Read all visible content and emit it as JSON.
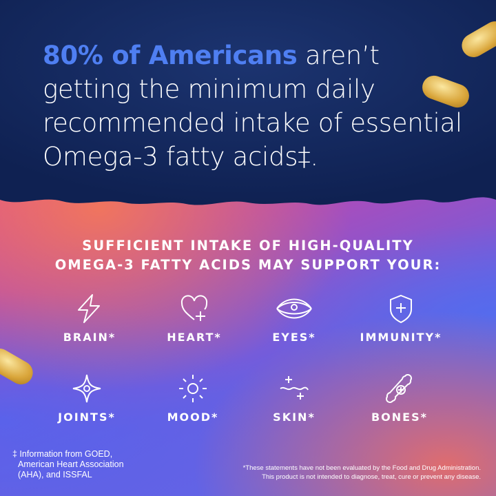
{
  "headline": {
    "highlight": "80% of Americans",
    "rest": " aren’t getting the minimum daily recommended intake of essential Omega-3 fatty acids‡."
  },
  "subheading": {
    "line1": "SUFFICIENT INTAKE OF HIGH-QUALITY",
    "line2": "OMEGA-3 FATTY ACIDS MAY SUPPORT YOUR:"
  },
  "benefits": [
    {
      "label": "BRAIN*",
      "icon": "lightning-icon"
    },
    {
      "label": "HEART*",
      "icon": "heart-plus-icon"
    },
    {
      "label": "EYES*",
      "icon": "eye-icon"
    },
    {
      "label": "IMMUNITY*",
      "icon": "shield-plus-icon"
    },
    {
      "label": "JOINTS*",
      "icon": "sparkle-joint-icon"
    },
    {
      "label": "MOOD*",
      "icon": "sun-icon"
    },
    {
      "label": "SKIN*",
      "icon": "wave-sparkle-icon"
    },
    {
      "label": "BONES*",
      "icon": "bone-plus-icon"
    }
  ],
  "footnote_left": {
    "line1": "‡ Information from GOED,",
    "line2": "American Heart Association",
    "line3": "(AHA), and ISSFAL"
  },
  "footnote_right": {
    "line1": "*These statements have not been evaluated by the Food and Drug Administration.",
    "line2": "This product is not intended to diagnose, treat, cure or prevent any disease."
  },
  "colors": {
    "navy": "#14285c",
    "highlight": "#4f7ff2",
    "softgel": "#d9a53a"
  }
}
